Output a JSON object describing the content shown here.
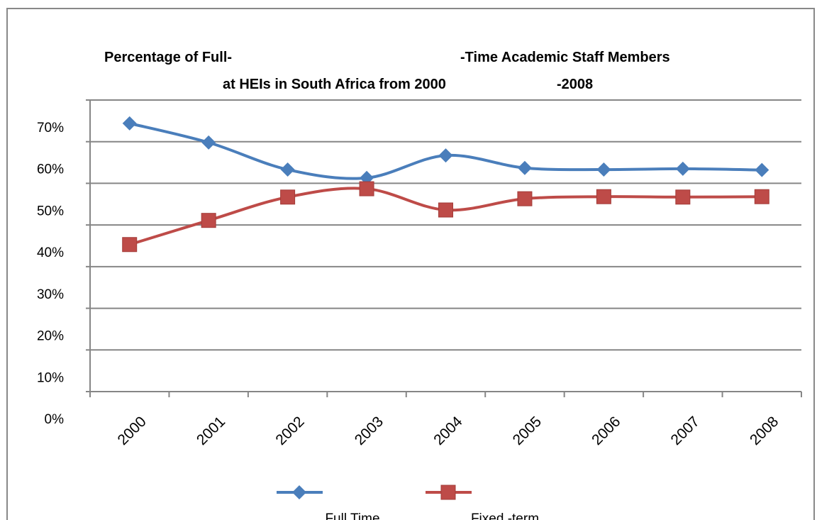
{
  "chart_data": {
    "type": "line",
    "title": [
      "Percentage of Full-",
      "-Time Academic Staff Members",
      "at HEIs in South Africa from 2000",
      "-2008"
    ],
    "categories": [
      "2000",
      "2001",
      "2002",
      "2003",
      "2004",
      "2005",
      "2006",
      "2007",
      "2008"
    ],
    "series": [
      {
        "name": "Full Time",
        "color": "#4a7ebb",
        "marker": "diamond",
        "values": [
          64.4,
          59.8,
          53.3,
          51.3,
          56.7,
          53.7,
          53.3,
          53.5,
          53.2
        ]
      },
      {
        "name": "Fixed -term",
        "color": "#be4b48",
        "marker": "square",
        "values": [
          35.3,
          41.1,
          46.7,
          48.7,
          43.6,
          46.3,
          46.8,
          46.7,
          46.8
        ]
      }
    ],
    "ylim": [
      0,
      70
    ],
    "yticks": [
      {
        "value": 0,
        "label": "0%"
      },
      {
        "value": 10,
        "label": "10%"
      },
      {
        "value": 20,
        "label": "20%"
      },
      {
        "value": 30,
        "label": "30%"
      },
      {
        "value": 40,
        "label": "40%"
      },
      {
        "value": 50,
        "label": "50%"
      },
      {
        "value": 60,
        "label": "60%"
      },
      {
        "value": 70,
        "label": "70%"
      }
    ],
    "grid": true,
    "legend": "bottom"
  }
}
